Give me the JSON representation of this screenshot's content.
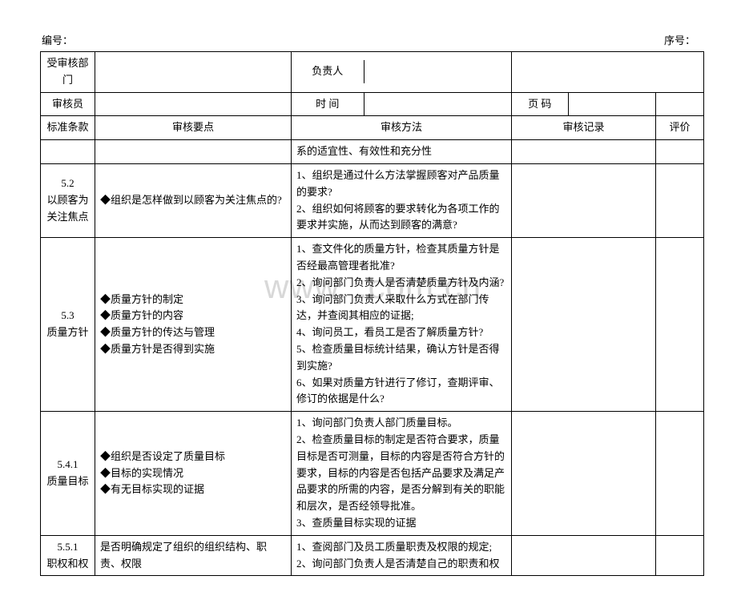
{
  "header": {
    "doc_no_label": "编号：",
    "seq_no_label": "序号："
  },
  "info_rows": {
    "row1": {
      "label1": "受审核部门",
      "label2": "负责人"
    },
    "row2": {
      "label1": "审核员",
      "label2": "时  间",
      "label3": "页  码"
    }
  },
  "columns": {
    "clause": "标准条款",
    "points": "审核要点",
    "method": "审核方法",
    "record": "审核记录",
    "eval": "评价"
  },
  "rows": [
    {
      "clause": "",
      "points": "",
      "method": "系的适宜性、有效性和充分性"
    },
    {
      "clause": "5.2\n以顾客为\n关注焦点",
      "points": "◆组织是怎样做到以顾客为关注焦点的?",
      "method": "1、组织是通过什么方法掌握顾客对产品质量的要求?\n2、组织如何将顾客的要求转化为各项工作的要求并实施，从而达到顾客的满意?"
    },
    {
      "clause": "5.3\n质量方针",
      "points": "◆质量方针的制定\n◆质量方针的内容\n◆质量方针的传达与管理\n◆质量方针是否得到实施",
      "method": "1、查文件化的质量方针，检查其质量方针是否经最高管理者批准?\n2、询问部门负责人是否清楚质量方针及内涵?\n3、询问部门负责人采取什么方式在部门传达，并查阅其相应的证据;\n4、询问员工，看员工是否了解质量方针?\n5、检查质量目标统计结果，确认方针是否得到实施?\n6、如果对质量方针进行了修订，查期评审、修订的依据是什么?"
    },
    {
      "clause": "5.4.1\n质量目标",
      "points": "◆组织是否设定了质量目标\n◆目标的实现情况\n◆有无目标实现的证据",
      "method": "1、询问部门负责人部门质量目标。\n2、检查质量目标的制定是否符合要求，质量目标是否可测量，目标的内容是否符合方针的要求，目标的内容是否包括产品要求及满足产品要求的所需的内容，是否分解到有关的职能和层次，是否经领导批准。\n3、查质量目标实现的证据"
    },
    {
      "clause": "5.5.1\n职权和权",
      "points": "是否明确规定了组织的组织结构、职责、权限",
      "method": "1、查阅部门及员工质量职责及权限的规定;\n2、询问部门负责人是否清楚自己的职责和权"
    }
  ],
  "watermark": "www.     .com.cn"
}
